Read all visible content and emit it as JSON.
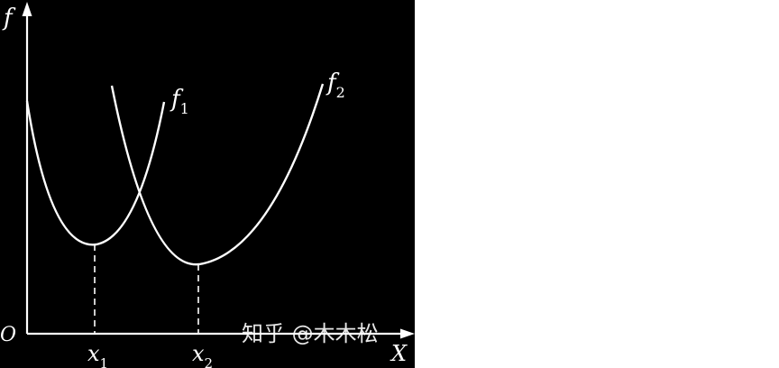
{
  "axes": {
    "y_label": "f",
    "x_label": "X",
    "origin_label": "O"
  },
  "curves": [
    {
      "label_main": "f",
      "label_sub": "1"
    },
    {
      "label_main": "f",
      "label_sub": "2"
    }
  ],
  "minima": [
    {
      "label_main": "x",
      "label_sub": "1"
    },
    {
      "label_main": "x",
      "label_sub": "2"
    }
  ],
  "watermark": "知乎 @木木松",
  "colors": {
    "background": "#000000",
    "stroke": "#ffffff"
  }
}
